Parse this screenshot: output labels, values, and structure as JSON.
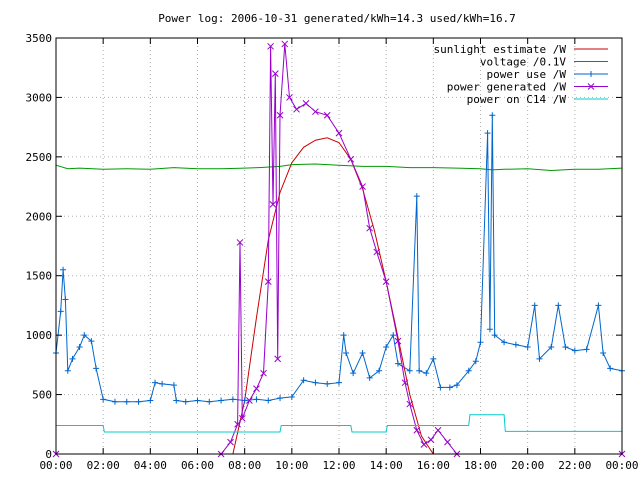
{
  "chart_data": {
    "type": "line",
    "title": "Power log: 2006-10-31 generated/kWh=14.3 used/kWh=16.7",
    "xlabel": "",
    "ylabel": "",
    "x_range_hours": [
      0,
      24
    ],
    "ylim": [
      0,
      3500
    ],
    "y_ticks": [
      0,
      500,
      1000,
      1500,
      2000,
      2500,
      3000,
      3500
    ],
    "x_tick_labels": [
      "00:00",
      "02:00",
      "04:00",
      "06:00",
      "08:00",
      "10:00",
      "12:00",
      "14:00",
      "16:00",
      "18:00",
      "20:00",
      "22:00",
      "00:00"
    ],
    "grid": true,
    "legend_position": "top-right",
    "series": [
      {
        "name": "sunlight estimate /W",
        "color": "#cc0000",
        "marker": "none",
        "points": [
          [
            7.5,
            0
          ],
          [
            8.0,
            450
          ],
          [
            8.5,
            1150
          ],
          [
            9.0,
            1800
          ],
          [
            9.5,
            2200
          ],
          [
            10.0,
            2450
          ],
          [
            10.5,
            2580
          ],
          [
            11.0,
            2640
          ],
          [
            11.5,
            2660
          ],
          [
            12.0,
            2620
          ],
          [
            12.5,
            2480
          ],
          [
            13.0,
            2230
          ],
          [
            13.5,
            1880
          ],
          [
            14.0,
            1450
          ],
          [
            14.5,
            980
          ],
          [
            15.0,
            500
          ],
          [
            15.5,
            150
          ],
          [
            16.0,
            0
          ]
        ]
      },
      {
        "name": "voltage /0.1V",
        "color": "#009900",
        "marker": "none",
        "points": [
          [
            0,
            2430
          ],
          [
            0.5,
            2400
          ],
          [
            1,
            2405
          ],
          [
            2,
            2395
          ],
          [
            3,
            2400
          ],
          [
            4,
            2395
          ],
          [
            5,
            2410
          ],
          [
            6,
            2400
          ],
          [
            7,
            2400
          ],
          [
            8,
            2405
          ],
          [
            8.6,
            2410
          ],
          [
            9.5,
            2420
          ],
          [
            10,
            2435
          ],
          [
            11,
            2440
          ],
          [
            12,
            2430
          ],
          [
            13,
            2420
          ],
          [
            14,
            2420
          ],
          [
            15,
            2410
          ],
          [
            16,
            2410
          ],
          [
            17,
            2405
          ],
          [
            18,
            2400
          ],
          [
            18.5,
            2390
          ],
          [
            19,
            2395
          ],
          [
            20,
            2400
          ],
          [
            21,
            2385
          ],
          [
            22,
            2395
          ],
          [
            23,
            2395
          ],
          [
            24,
            2405
          ]
        ]
      },
      {
        "name": "power use /W",
        "color": "#0066cc",
        "marker": "plus",
        "points": [
          [
            0.0,
            850
          ],
          [
            0.2,
            1200
          ],
          [
            0.3,
            1550
          ],
          [
            0.4,
            1300
          ],
          [
            0.5,
            700
          ],
          [
            0.7,
            800
          ],
          [
            1.0,
            900
          ],
          [
            1.2,
            1000
          ],
          [
            1.5,
            950
          ],
          [
            1.7,
            720
          ],
          [
            2.0,
            460
          ],
          [
            2.5,
            440
          ],
          [
            3.0,
            440
          ],
          [
            3.5,
            440
          ],
          [
            4.0,
            450
          ],
          [
            4.2,
            600
          ],
          [
            4.5,
            590
          ],
          [
            5.0,
            580
          ],
          [
            5.1,
            450
          ],
          [
            5.5,
            440
          ],
          [
            6.0,
            450
          ],
          [
            6.5,
            440
          ],
          [
            7.0,
            450
          ],
          [
            7.5,
            460
          ],
          [
            8.0,
            450
          ],
          [
            8.5,
            460
          ],
          [
            9.0,
            450
          ],
          [
            9.5,
            470
          ],
          [
            10.0,
            480
          ],
          [
            10.5,
            620
          ],
          [
            11.0,
            600
          ],
          [
            11.5,
            590
          ],
          [
            12.0,
            600
          ],
          [
            12.2,
            1000
          ],
          [
            12.3,
            850
          ],
          [
            12.6,
            680
          ],
          [
            13.0,
            850
          ],
          [
            13.3,
            640
          ],
          [
            13.7,
            700
          ],
          [
            14.0,
            900
          ],
          [
            14.3,
            1000
          ],
          [
            14.5,
            760
          ],
          [
            15.0,
            700
          ],
          [
            15.3,
            2170
          ],
          [
            15.4,
            700
          ],
          [
            15.7,
            680
          ],
          [
            16.0,
            800
          ],
          [
            16.3,
            560
          ],
          [
            16.7,
            560
          ],
          [
            17.0,
            580
          ],
          [
            17.5,
            700
          ],
          [
            17.8,
            780
          ],
          [
            18.0,
            940
          ],
          [
            18.3,
            2700
          ],
          [
            18.4,
            1050
          ],
          [
            18.5,
            2850
          ],
          [
            18.6,
            1000
          ],
          [
            19.0,
            940
          ],
          [
            19.5,
            920
          ],
          [
            20.0,
            900
          ],
          [
            20.3,
            1250
          ],
          [
            20.5,
            800
          ],
          [
            21.0,
            900
          ],
          [
            21.3,
            1250
          ],
          [
            21.6,
            900
          ],
          [
            22.0,
            870
          ],
          [
            22.5,
            880
          ],
          [
            23.0,
            1250
          ],
          [
            23.2,
            850
          ],
          [
            23.5,
            720
          ],
          [
            24.0,
            700
          ]
        ]
      },
      {
        "name": "power generated /W",
        "color": "#9900cc",
        "marker": "cross",
        "points": [
          [
            0.0,
            0
          ],
          [
            7.0,
            0
          ],
          [
            7.4,
            100
          ],
          [
            7.7,
            250
          ],
          [
            7.8,
            1780
          ],
          [
            7.9,
            300
          ],
          [
            8.2,
            450
          ],
          [
            8.5,
            550
          ],
          [
            8.8,
            680
          ],
          [
            9.0,
            1450
          ],
          [
            9.1,
            3430
          ],
          [
            9.2,
            2100
          ],
          [
            9.3,
            3200
          ],
          [
            9.4,
            800
          ],
          [
            9.5,
            2850
          ],
          [
            9.7,
            3450
          ],
          [
            9.9,
            3000
          ],
          [
            10.2,
            2900
          ],
          [
            10.6,
            2950
          ],
          [
            11.0,
            2880
          ],
          [
            11.5,
            2850
          ],
          [
            12.0,
            2700
          ],
          [
            12.5,
            2480
          ],
          [
            13.0,
            2250
          ],
          [
            13.3,
            1900
          ],
          [
            13.6,
            1700
          ],
          [
            14.0,
            1450
          ],
          [
            14.5,
            950
          ],
          [
            14.8,
            600
          ],
          [
            15.0,
            420
          ],
          [
            15.3,
            200
          ],
          [
            15.6,
            80
          ],
          [
            15.9,
            120
          ],
          [
            16.2,
            200
          ],
          [
            16.6,
            100
          ],
          [
            17.0,
            0
          ],
          [
            24.0,
            0
          ]
        ]
      },
      {
        "name": "power on C14 /W",
        "color": "#00cccc",
        "marker": "none",
        "points": [
          [
            0.0,
            240
          ],
          [
            2.0,
            240
          ],
          [
            2.05,
            185
          ],
          [
            9.5,
            185
          ],
          [
            9.55,
            240
          ],
          [
            12.5,
            240
          ],
          [
            12.55,
            185
          ],
          [
            14.0,
            185
          ],
          [
            14.05,
            240
          ],
          [
            17.5,
            240
          ],
          [
            17.55,
            330
          ],
          [
            19.0,
            330
          ],
          [
            19.05,
            190
          ],
          [
            24.0,
            190
          ]
        ]
      }
    ]
  }
}
